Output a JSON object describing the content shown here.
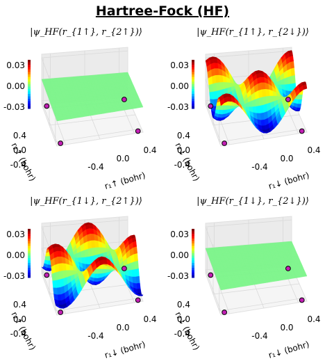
{
  "title": "Hartree-Fock (HF)",
  "chart_data": [
    {
      "type": "surface3d",
      "title": "|ψ_HF(r_{1↑}, r_{2↑})⟩",
      "xlabel": "r₁↑ (bohr)",
      "ylabel": "r₂↑ (bohr)",
      "zticks": [
        "0.03",
        "0.00",
        "-0.03"
      ],
      "xticks": [
        "-0.4",
        "0.0",
        "0.4"
      ],
      "yticks": [
        "-0.4",
        "0.0",
        "0.4"
      ],
      "zlim": [
        -0.035,
        0.035
      ],
      "surface": "flat",
      "amplitude": 0,
      "electron_markers": [
        [
          -0.45,
          0.45
        ],
        [
          -0.45,
          -0.45
        ],
        [
          0.45,
          -0.45
        ],
        [
          0.45,
          0.45
        ]
      ]
    },
    {
      "type": "surface3d",
      "title": "|ψ_HF(r_{1↑}, r_{2↓})⟩",
      "xlabel": "r₁↓ (bohr)",
      "ylabel": "r₂↓ (bohr)",
      "zticks": [
        "0.03",
        "0.00",
        "-0.03"
      ],
      "xticks": [
        "-0.4",
        "0.0",
        "0.4"
      ],
      "yticks": [
        "-0.4",
        "0.0",
        "0.4"
      ],
      "zlim": [
        -0.035,
        0.035
      ],
      "surface": "wave",
      "amplitude": 0.032,
      "electron_markers": [
        [
          -0.45,
          0.45
        ],
        [
          -0.45,
          -0.45
        ],
        [
          0.45,
          -0.45
        ],
        [
          0.45,
          0.45
        ]
      ]
    },
    {
      "type": "surface3d",
      "title": "|ψ_HF(r_{1↓}, r_{2↑})⟩",
      "xlabel": "r₁↓ (bohr)",
      "ylabel": "r₂↑ (bohr)",
      "zticks": [
        "0.03",
        "0.00",
        "-0.03"
      ],
      "xticks": [
        "-0.4",
        "0.0",
        "0.4"
      ],
      "yticks": [
        "-0.4",
        "0.0",
        "0.4"
      ],
      "zlim": [
        -0.035,
        0.035
      ],
      "surface": "wave",
      "amplitude": -0.032,
      "electron_markers": [
        [
          -0.45,
          0.45
        ],
        [
          -0.45,
          -0.45
        ],
        [
          0.45,
          -0.45
        ],
        [
          0.45,
          0.45
        ]
      ]
    },
    {
      "type": "surface3d",
      "title": "|ψ_HF(r_{1↓}, r_{2↓})⟩",
      "xlabel": "r₁↓ (bohr)",
      "ylabel": "r₂↓ (bohr)",
      "zticks": [
        "0.03",
        "0.00",
        "-0.03"
      ],
      "xticks": [
        "-0.4",
        "0.0",
        "0.4"
      ],
      "yticks": [
        "-0.4",
        "0.0",
        "0.4"
      ],
      "zlim": [
        -0.035,
        0.035
      ],
      "surface": "flat",
      "amplitude": 0,
      "electron_markers": [
        [
          -0.45,
          0.45
        ],
        [
          -0.45,
          -0.45
        ],
        [
          0.45,
          -0.45
        ],
        [
          0.45,
          0.45
        ]
      ]
    }
  ],
  "colors": {
    "flat_surface": "#7cf58a",
    "marker_fill": "#c21fb4",
    "pane": "#f2f2f2",
    "grid": "#d9d9d9"
  }
}
